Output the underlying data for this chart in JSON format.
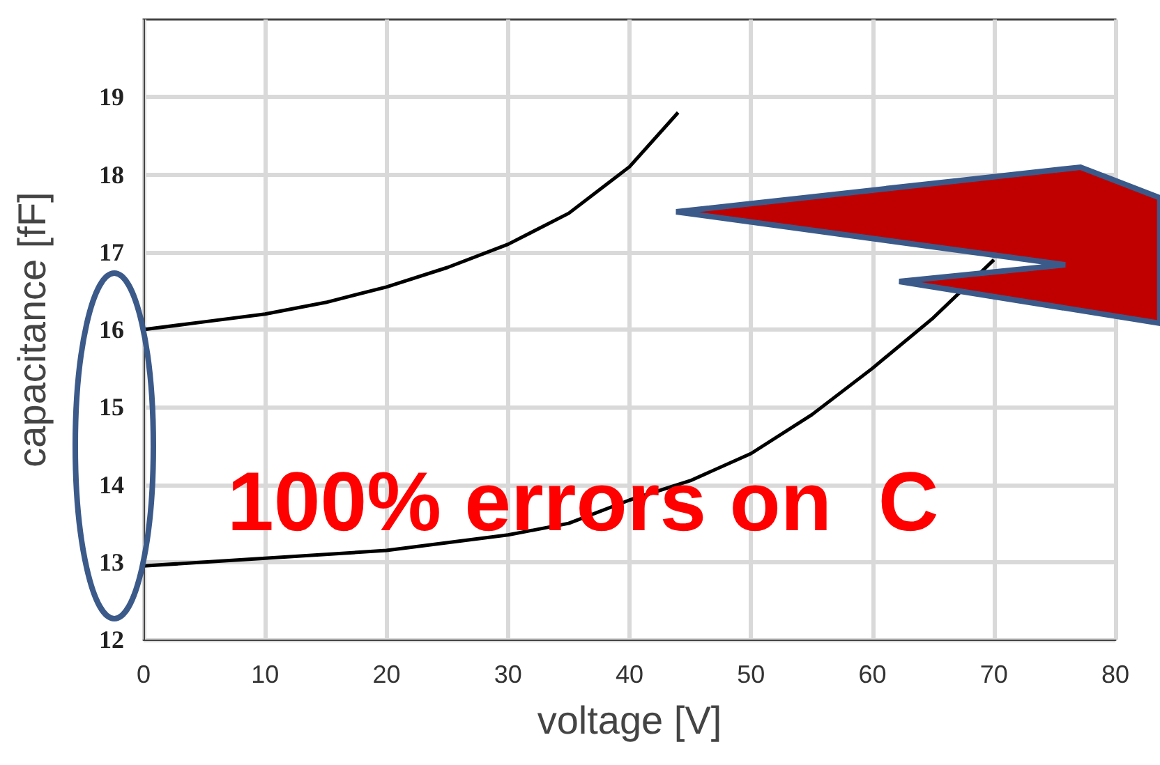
{
  "chart_data": {
    "type": "line",
    "xlabel": "voltage [V]",
    "ylabel": "capacitance [fF]",
    "annotations": [
      "100% errors on  C"
    ],
    "xlim": [
      0,
      80
    ],
    "xticks": [
      0,
      10,
      20,
      30,
      40,
      50,
      60,
      70,
      80
    ],
    "ylim": [
      12,
      20
    ],
    "yticks": [
      12,
      13,
      14,
      15,
      16,
      17,
      18,
      19
    ],
    "grid": true,
    "marker": "none",
    "line_style": "solid",
    "series": [
      {
        "color": "#000000",
        "x": [
          0,
          5,
          10,
          15,
          20,
          25,
          30,
          35,
          40,
          44
        ],
        "values": [
          16.0,
          16.1,
          16.2,
          16.35,
          16.55,
          16.8,
          17.1,
          17.5,
          18.1,
          18.8
        ]
      },
      {
        "color": "#000000",
        "x": [
          0,
          10,
          20,
          30,
          35,
          40,
          45,
          50,
          55,
          60,
          65,
          70
        ],
        "values": [
          12.95,
          13.05,
          13.15,
          13.35,
          13.5,
          13.8,
          14.05,
          14.4,
          14.9,
          15.5,
          16.15,
          16.9
        ]
      }
    ]
  }
}
